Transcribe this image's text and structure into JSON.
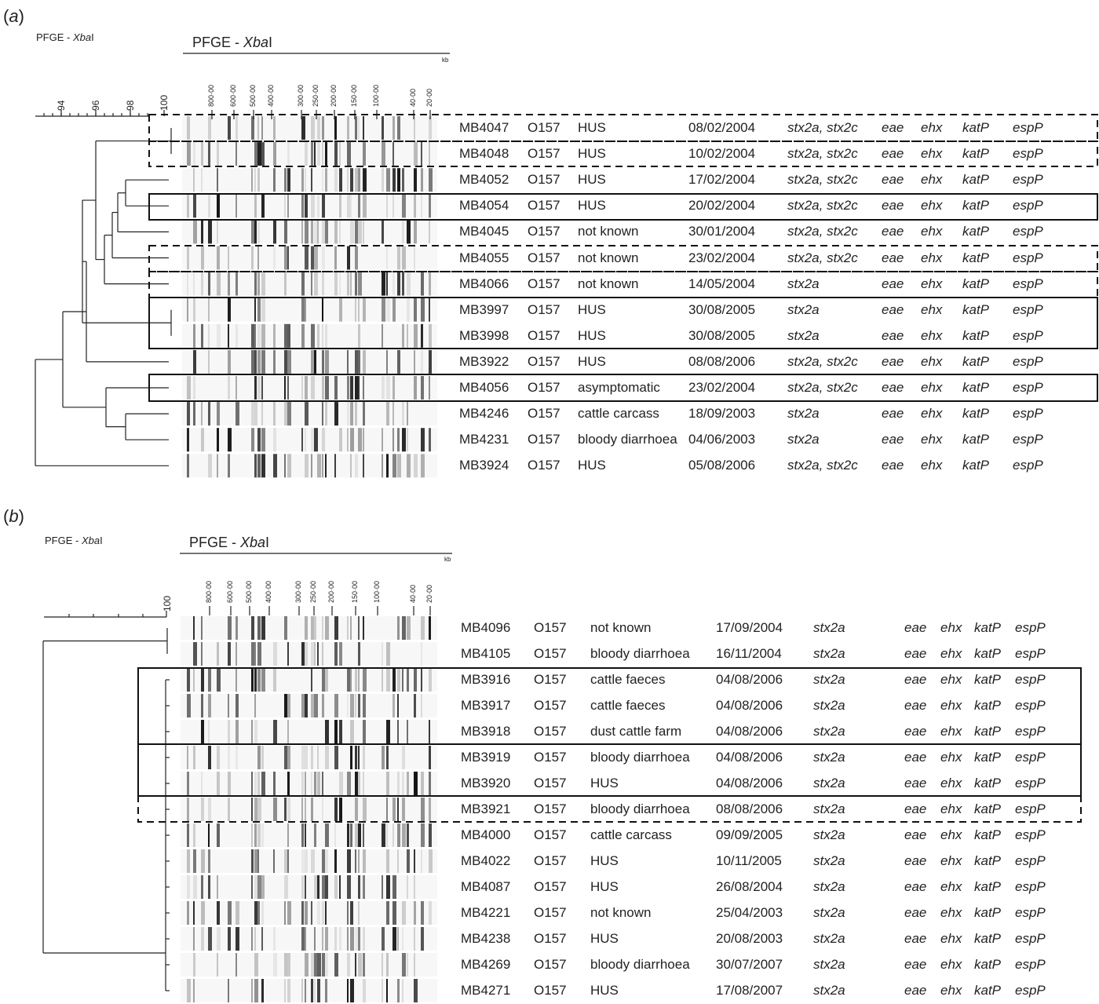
{
  "panel_a": {
    "label": "(a)",
    "letter": "a",
    "method_left": "PFGE - ",
    "enzyme": "Xba",
    "enzyme_suffix": "I",
    "unit": "kb",
    "similarity_ticks": [
      "94",
      "96",
      "98",
      "100"
    ],
    "size_ticks": [
      "800·00",
      "600·00",
      "500·00",
      "400·00",
      "300·00",
      "250·00",
      "200·00",
      "150·00",
      "100·00",
      "40·00",
      "20·00"
    ],
    "rows": [
      {
        "id": "MB4047",
        "serotype": "O157",
        "source": "HUS",
        "date": "08/02/2004",
        "stx": "stx2a, stx2c",
        "eae": "eae",
        "ehx": "ehx",
        "katP": "katP",
        "espP": "espP"
      },
      {
        "id": "MB4048",
        "serotype": "O157",
        "source": "HUS",
        "date": "10/02/2004",
        "stx": "stx2a, stx2c",
        "eae": "eae",
        "ehx": "ehx",
        "katP": "katP",
        "espP": "espP"
      },
      {
        "id": "MB4052",
        "serotype": "O157",
        "source": "HUS",
        "date": "17/02/2004",
        "stx": "stx2a, stx2c",
        "eae": "eae",
        "ehx": "ehx",
        "katP": "katP",
        "espP": "espP"
      },
      {
        "id": "MB4054",
        "serotype": "O157",
        "source": "HUS",
        "date": "20/02/2004",
        "stx": "stx2a, stx2c",
        "eae": "eae",
        "ehx": "ehx",
        "katP": "katP",
        "espP": "espP"
      },
      {
        "id": "MB4045",
        "serotype": "O157",
        "source": "not known",
        "date": "30/01/2004",
        "stx": "stx2a, stx2c",
        "eae": "eae",
        "ehx": "ehx",
        "katP": "katP",
        "espP": "espP"
      },
      {
        "id": "MB4055",
        "serotype": "O157",
        "source": "not known",
        "date": "23/02/2004",
        "stx": "stx2a, stx2c",
        "eae": "eae",
        "ehx": "ehx",
        "katP": "katP",
        "espP": "espP"
      },
      {
        "id": "MB4066",
        "serotype": "O157",
        "source": "not known",
        "date": "14/05/2004",
        "stx": "stx2a",
        "eae": "eae",
        "ehx": "ehx",
        "katP": "katP",
        "espP": "espP"
      },
      {
        "id": "MB3997",
        "serotype": "O157",
        "source": "HUS",
        "date": "30/08/2005",
        "stx": "stx2a",
        "eae": "eae",
        "ehx": "ehx",
        "katP": "katP",
        "espP": "espP"
      },
      {
        "id": "MB3998",
        "serotype": "O157",
        "source": "HUS",
        "date": "30/08/2005",
        "stx": "stx2a",
        "eae": "eae",
        "ehx": "ehx",
        "katP": "katP",
        "espP": "espP"
      },
      {
        "id": "MB3922",
        "serotype": "O157",
        "source": "HUS",
        "date": "08/08/2006",
        "stx": "stx2a, stx2c",
        "eae": "eae",
        "ehx": "ehx",
        "katP": "katP",
        "espP": "espP"
      },
      {
        "id": "MB4056",
        "serotype": "O157",
        "source": "asymptomatic",
        "date": "23/02/2004",
        "stx": "stx2a, stx2c",
        "eae": "eae",
        "ehx": "ehx",
        "katP": "katP",
        "espP": "espP"
      },
      {
        "id": "MB4246",
        "serotype": "O157",
        "source": "cattle carcass",
        "date": "18/09/2003",
        "stx": "stx2a",
        "eae": "eae",
        "ehx": "ehx",
        "katP": "katP",
        "espP": "espP"
      },
      {
        "id": "MB4231",
        "serotype": "O157",
        "source": "bloody diarrhoea",
        "date": "04/06/2003",
        "stx": "stx2a",
        "eae": "eae",
        "ehx": "ehx",
        "katP": "katP",
        "espP": "espP"
      },
      {
        "id": "MB3924",
        "serotype": "O157",
        "source": "HUS",
        "date": "05/08/2006",
        "stx": "stx2a, stx2c",
        "eae": "eae",
        "ehx": "ehx",
        "katP": "katP",
        "espP": "espP"
      }
    ]
  },
  "panel_b": {
    "label": "(b)",
    "letter": "b",
    "method_left": "PFGE - ",
    "enzyme": "Xba",
    "enzyme_suffix": "I",
    "unit": "kb",
    "similarity_ticks": [
      "100"
    ],
    "size_ticks": [
      "800·00",
      "600·00",
      "500·00",
      "400·00",
      "300·00",
      "250·00",
      "200·00",
      "150·00",
      "100·00",
      "40·00",
      "20·00"
    ],
    "rows": [
      {
        "id": "MB4096",
        "serotype": "O157",
        "source": "not known",
        "date": "17/09/2004",
        "stx": "stx2a",
        "eae": "eae",
        "ehx": "ehx",
        "katP": "katP",
        "espP": "espP"
      },
      {
        "id": "MB4105",
        "serotype": "O157",
        "source": "bloody diarrhoea",
        "date": "16/11/2004",
        "stx": "stx2a",
        "eae": "eae",
        "ehx": "ehx",
        "katP": "katP",
        "espP": "espP"
      },
      {
        "id": "MB3916",
        "serotype": "O157",
        "source": "cattle faeces",
        "date": "04/08/2006",
        "stx": "stx2a",
        "eae": "eae",
        "ehx": "ehx",
        "katP": "katP",
        "espP": "espP"
      },
      {
        "id": "MB3917",
        "serotype": "O157",
        "source": "cattle faeces",
        "date": "04/08/2006",
        "stx": "stx2a",
        "eae": "eae",
        "ehx": "ehx",
        "katP": "katP",
        "espP": "espP"
      },
      {
        "id": "MB3918",
        "serotype": "O157",
        "source": "dust cattle farm",
        "date": "04/08/2006",
        "stx": "stx2a",
        "eae": "eae",
        "ehx": "ehx",
        "katP": "katP",
        "espP": "espP"
      },
      {
        "id": "MB3919",
        "serotype": "O157",
        "source": "bloody diarrhoea",
        "date": "04/08/2006",
        "stx": "stx2a",
        "eae": "eae",
        "ehx": "ehx",
        "katP": "katP",
        "espP": "espP"
      },
      {
        "id": "MB3920",
        "serotype": "O157",
        "source": "HUS",
        "date": "04/08/2006",
        "stx": "stx2a",
        "eae": "eae",
        "ehx": "ehx",
        "katP": "katP",
        "espP": "espP"
      },
      {
        "id": "MB3921",
        "serotype": "O157",
        "source": "bloody diarrhoea",
        "date": "08/08/2006",
        "stx": "stx2a",
        "eae": "eae",
        "ehx": "ehx",
        "katP": "katP",
        "espP": "espP"
      },
      {
        "id": "MB4000",
        "serotype": "O157",
        "source": "cattle carcass",
        "date": "09/09/2005",
        "stx": "stx2a",
        "eae": "eae",
        "ehx": "ehx",
        "katP": "katP",
        "espP": "espP"
      },
      {
        "id": "MB4022",
        "serotype": "O157",
        "source": "HUS",
        "date": "10/11/2005",
        "stx": "stx2a",
        "eae": "eae",
        "ehx": "ehx",
        "katP": "katP",
        "espP": "espP"
      },
      {
        "id": "MB4087",
        "serotype": "O157",
        "source": "HUS",
        "date": "26/08/2004",
        "stx": "stx2a",
        "eae": "eae",
        "ehx": "ehx",
        "katP": "katP",
        "espP": "espP"
      },
      {
        "id": "MB4221",
        "serotype": "O157",
        "source": "not known",
        "date": "25/04/2003",
        "stx": "stx2a",
        "eae": "eae",
        "ehx": "ehx",
        "katP": "katP",
        "espP": "espP"
      },
      {
        "id": "MB4238",
        "serotype": "O157",
        "source": "HUS",
        "date": "20/08/2003",
        "stx": "stx2a",
        "eae": "eae",
        "ehx": "ehx",
        "katP": "katP",
        "espP": "espP"
      },
      {
        "id": "MB4269",
        "serotype": "O157",
        "source": "bloody diarrhoea",
        "date": "30/07/2007",
        "stx": "stx2a",
        "eae": "eae",
        "ehx": "ehx",
        "katP": "katP",
        "espP": "espP"
      },
      {
        "id": "MB4271",
        "serotype": "O157",
        "source": "HUS",
        "date": "17/08/2007",
        "stx": "stx2a",
        "eae": "eae",
        "ehx": "ehx",
        "katP": "katP",
        "espP": "espP"
      }
    ]
  }
}
